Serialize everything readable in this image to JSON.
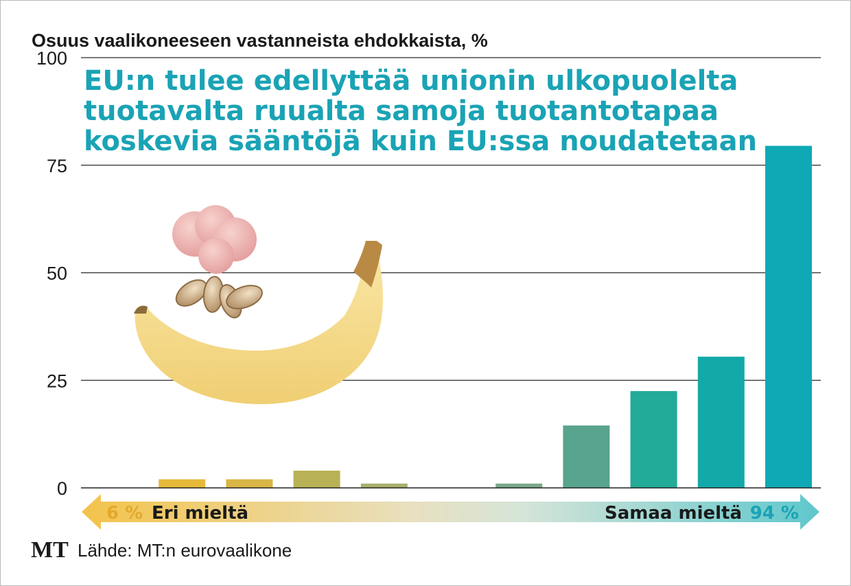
{
  "chart_data": {
    "type": "bar",
    "ylabel": "Osuus vaalikoneeseen vastanneista ehdokkaista, %",
    "title_lines": [
      "EU:n tulee edellyttää unionin ulkopuolelta",
      "tuotavalta ruualta samoja tuotantotapaa",
      "koskevia sääntöjä kuin EU:ssa noudatetaan"
    ],
    "ylim": [
      0,
      100
    ],
    "yticks": [
      "0",
      "25",
      "50",
      "75",
      "100"
    ],
    "grid": true,
    "values": [
      0,
      2,
      2,
      4,
      1,
      0,
      1,
      14.5,
      22.5,
      30.5,
      79.5
    ],
    "bar_colors": [
      "#e7b93a",
      "#e7b93a",
      "#d9b645",
      "#b9b155",
      "#a9ae6c",
      "#a0aa7c",
      "#7aa88a",
      "#58a48e",
      "#22ab98",
      "#13a9a8",
      "#0fa9b6"
    ],
    "scale": {
      "left_label": "Eri mieltä",
      "left_value": "6 %",
      "right_label": "Samaa mieltä",
      "right_value": "94 %",
      "left_color": "#e7b93a",
      "right_color": "#1aa3b5"
    },
    "illustration": "banana-meat-grain"
  },
  "footer": {
    "logo": "MT",
    "source": "Lähde: MT:n eurovaalikone"
  }
}
